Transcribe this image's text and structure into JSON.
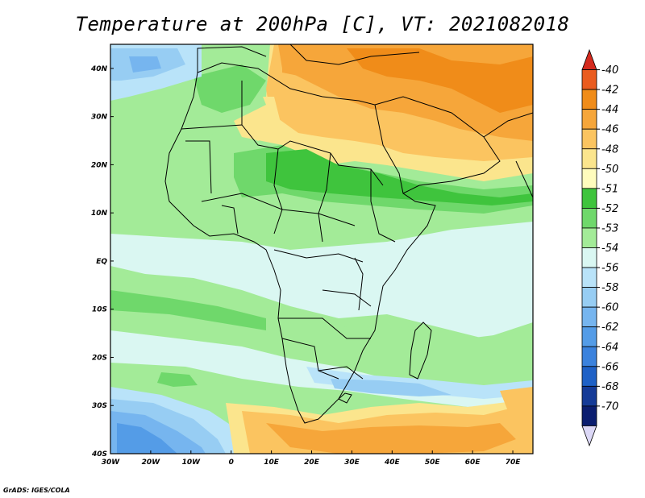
{
  "title": "Temperature at 200hPa [C], VT: 2021082018",
  "credit": "GrADS: IGES/COLA",
  "map": {
    "lon_ticks": [
      "30W",
      "20W",
      "10W",
      "0",
      "10E",
      "20E",
      "30E",
      "40E",
      "50E",
      "60E",
      "70E"
    ],
    "lat_ticks": [
      "40N",
      "30N",
      "20N",
      "10N",
      "EQ",
      "10S",
      "20S",
      "30S",
      "40S"
    ],
    "lon_range": [
      -30,
      75
    ],
    "lat_range": [
      -40,
      45
    ]
  },
  "colorbar": {
    "levels": [
      "-40",
      "-42",
      "-44",
      "-46",
      "-48",
      "-50",
      "-51",
      "-52",
      "-53",
      "-54",
      "-56",
      "-58",
      "-60",
      "-62",
      "-64",
      "-66",
      "-68",
      "-70"
    ],
    "colors": [
      "#d42a1e",
      "#ea5c1f",
      "#f08c19",
      "#f6a63a",
      "#fbc460",
      "#fbe58d",
      "#fffcbd",
      "#3fc43d",
      "#6fd86b",
      "#a3eb98",
      "#daf7f2",
      "#b9e3f9",
      "#97cdf3",
      "#76b5ef",
      "#549ce7",
      "#3b82dd",
      "#1f61c6",
      "#153b97",
      "#0b1e70",
      "#dcd8f7"
    ]
  },
  "colors": {
    "land_border": "#000000",
    "frame": "#000000"
  }
}
